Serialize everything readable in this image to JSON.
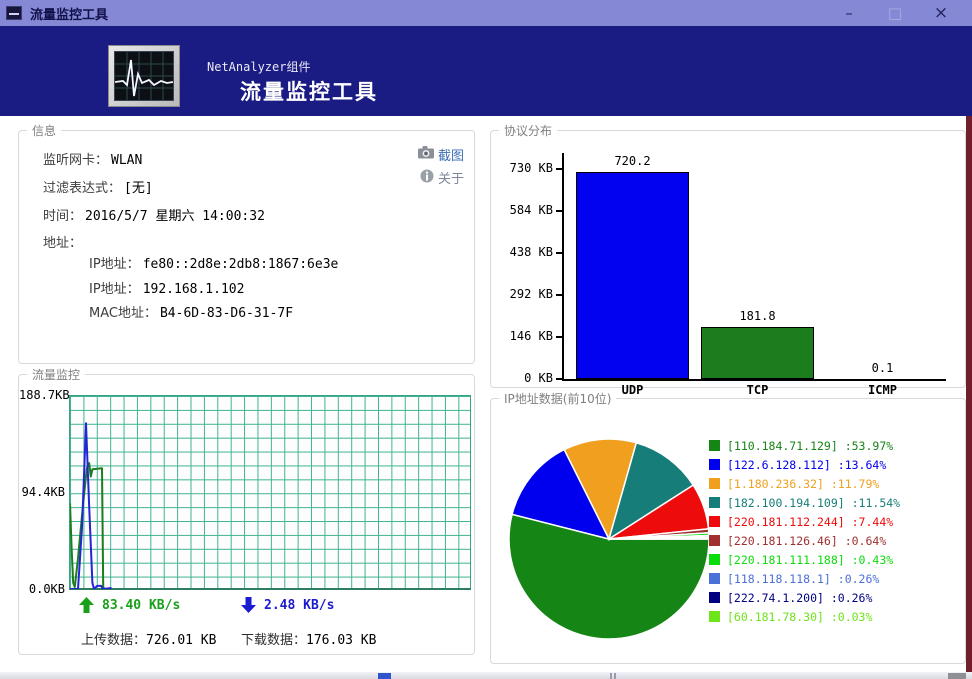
{
  "window": {
    "title": "流量监控工具",
    "controls": {
      "minimize": "–",
      "maximize": "□",
      "close": "×"
    }
  },
  "header": {
    "component_label": "NetAnalyzer组件",
    "app_title": "流量监控工具"
  },
  "info": {
    "group_title": "信息",
    "rows": [
      {
        "label": "监听网卡：",
        "value": "WLAN"
      },
      {
        "label": "过滤表达式：",
        "value": "[无]"
      },
      {
        "label": "时间：",
        "value": "2016/5/7 星期六 14:00:32"
      },
      {
        "label": "地址：",
        "value": ""
      }
    ],
    "address_rows": [
      {
        "label": "IP地址：",
        "value": "fe80::2d8e:2db8:1867:6e3e"
      },
      {
        "label": "IP地址：",
        "value": "192.168.1.102"
      },
      {
        "label": "MAC地址：",
        "value": "B4-6D-83-D6-31-7F"
      }
    ],
    "screenshot_label": "截图",
    "about_label": "关于"
  },
  "traffic": {
    "group_title": "流量监控",
    "upload_speed": "83.40 KB/s",
    "download_speed": "2.48 KB/s",
    "upload_total_label": "上传数据：",
    "upload_total_value": "726.01 KB",
    "download_total_label": "下载数据：",
    "download_total_value": "176.03 KB"
  },
  "protocol": {
    "group_title": "协议分布"
  },
  "ip_stats": {
    "group_title": "IP地址数据(前10位)"
  },
  "chart_data": [
    {
      "type": "line",
      "title": "流量监控",
      "ylabel": "KB",
      "ylim": [
        0,
        188.7
      ],
      "y_tick_labels": [
        "188.7KB",
        "94.4KB",
        "0.0KB"
      ],
      "grid": true,
      "series": [
        {
          "name": "upload",
          "color": "#1b7d1b",
          "points": [
            [
              0,
              84
            ],
            [
              0.004,
              40
            ],
            [
              0.008,
              6
            ],
            [
              0.012,
              2
            ],
            [
              0.02,
              30
            ],
            [
              0.032,
              80
            ],
            [
              0.042,
              118
            ],
            [
              0.048,
              123
            ],
            [
              0.052,
              110
            ],
            [
              0.056,
              117
            ],
            [
              0.08,
              118
            ],
            [
              0.083,
              2
            ],
            [
              0.086,
              0
            ],
            [
              0.104,
              0
            ]
          ]
        },
        {
          "name": "download",
          "color": "#2525d8",
          "points": [
            [
              0,
              0
            ],
            [
              0.02,
              0
            ],
            [
              0.03,
              60
            ],
            [
              0.04,
              162
            ],
            [
              0.048,
              80
            ],
            [
              0.056,
              6
            ],
            [
              0.06,
              0
            ],
            [
              0.068,
              3
            ],
            [
              0.078,
              3
            ],
            [
              0.082,
              0
            ],
            [
              0.104,
              1
            ]
          ]
        }
      ]
    },
    {
      "type": "bar",
      "title": "协议分布",
      "categories": [
        "UDP",
        "TCP",
        "ICMP"
      ],
      "values": [
        720.2,
        181.8,
        0.1
      ],
      "value_labels": [
        "720.2",
        "181.8",
        "0.1"
      ],
      "colors": [
        "#0202f0",
        "#1b7d1b",
        "#1b7d1b"
      ],
      "axis_max": 730,
      "ylabel": "KB",
      "y_ticks": [
        {
          "label": "730 KB",
          "value": 730
        },
        {
          "label": "584 KB",
          "value": 584
        },
        {
          "label": "438 KB",
          "value": 438
        },
        {
          "label": "292 KB",
          "value": 292
        },
        {
          "label": "146 KB",
          "value": 146
        },
        {
          "label": "0 KB",
          "value": 0
        }
      ]
    },
    {
      "type": "pie",
      "title": "IP地址数据(前10位)",
      "legend_position": "right",
      "slices": [
        {
          "ip": "[110.184.71.129]",
          "pct": 53.97,
          "pct_text": "53.97%",
          "color": "#158515"
        },
        {
          "ip": "[122.6.128.112]",
          "pct": 13.64,
          "pct_text": "13.64%",
          "color": "#0000ee"
        },
        {
          "ip": "[1.180.236.32]",
          "pct": 11.79,
          "pct_text": "11.79%",
          "color": "#f0a01e"
        },
        {
          "ip": "[182.100.194.109]",
          "pct": 11.54,
          "pct_text": "11.54%",
          "color": "#177d78"
        },
        {
          "ip": "[220.181.112.244]",
          "pct": 7.44,
          "pct_text": "7.44%",
          "color": "#ee0b0b"
        },
        {
          "ip": "[220.181.126.46]",
          "pct": 0.64,
          "pct_text": "0.64%",
          "color": "#a03030"
        },
        {
          "ip": "[220.181.111.188]",
          "pct": 0.43,
          "pct_text": "0.43%",
          "color": "#0cdc0c"
        },
        {
          "ip": "[118.118.118.1]",
          "pct": 0.26,
          "pct_text": "0.26%",
          "color": "#4b70d8"
        },
        {
          "ip": "[222.74.1.200]",
          "pct": 0.26,
          "pct_text": "0.26%",
          "color": "#000080"
        },
        {
          "ip": "[60.181.78.30]",
          "pct": 0.03,
          "pct_text": "0.03%",
          "color": "#6ee41a"
        }
      ]
    }
  ]
}
